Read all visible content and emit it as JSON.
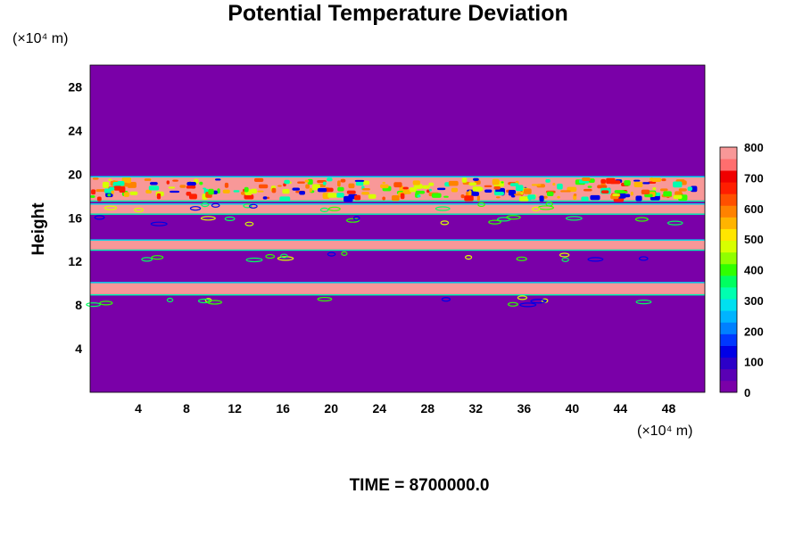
{
  "chart_data": {
    "type": "heatmap",
    "title": "Potential Temperature Deviation",
    "ylabel": "Height",
    "x_unit_label": "(×10⁴ m)",
    "y_unit_label": "(×10⁴ m)",
    "x_ticks": [
      4,
      8,
      12,
      16,
      20,
      24,
      28,
      32,
      36,
      40,
      44,
      48
    ],
    "y_ticks": [
      4,
      8,
      12,
      16,
      20,
      24,
      28
    ],
    "xlim": [
      0,
      51
    ],
    "ylim": [
      0,
      30
    ],
    "colorbar": {
      "min": 0,
      "max": 800,
      "ticks": [
        0,
        100,
        200,
        300,
        400,
        500,
        600,
        700,
        800
      ],
      "colors": [
        "#7a00a8",
        "#5a00b4",
        "#2c00c8",
        "#0000e6",
        "#0038ff",
        "#0080ff",
        "#00b4ff",
        "#00e0f0",
        "#00ffb0",
        "#00ff60",
        "#30ff00",
        "#90ff00",
        "#d8ff00",
        "#ffe600",
        "#ffb400",
        "#ff8200",
        "#ff5000",
        "#ff1e00",
        "#f00000",
        "#ff6e6e",
        "#f89898"
      ]
    },
    "background_value": 0,
    "bands": [
      {
        "y_bottom": 9.0,
        "y_top": 10.0,
        "value": 800
      },
      {
        "y_bottom": 13.1,
        "y_top": 13.9,
        "value": 800
      },
      {
        "y_bottom": 16.4,
        "y_top": 17.2,
        "value": 800
      },
      {
        "y_bottom": 17.6,
        "y_top": 19.7,
        "value": 800
      }
    ],
    "footer": "TIME = 8700000.0"
  }
}
